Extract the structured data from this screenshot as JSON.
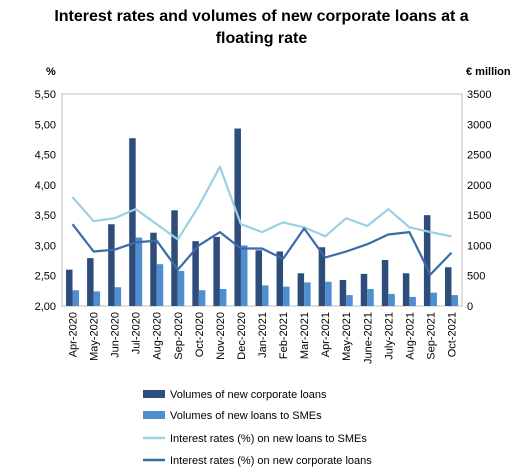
{
  "chart_data": {
    "type": "bar",
    "title_line1": "Interest rates and volumes of new corporate loans at a",
    "title_line2": "floating rate",
    "ylabel_left": "%",
    "ylabel_right": "€ million",
    "ylim_left": [
      2.0,
      5.5
    ],
    "ylim_right": [
      0,
      3500
    ],
    "yticks_left": [
      "5,50",
      "5,00",
      "4,50",
      "4,00",
      "3,50",
      "3,00",
      "2,50",
      "2,00"
    ],
    "yticks_right": [
      "3500",
      "3000",
      "2500",
      "2000",
      "1500",
      "1000",
      "500",
      "0"
    ],
    "categories": [
      "Apr-2020",
      "May-2020",
      "Jun-2020",
      "Jul-2020",
      "Aug-2020",
      "Sep-2020",
      "Oct-2020",
      "Nov-2020",
      "Dec-2020",
      "Jan-2021",
      "Feb-2021",
      "Mar-2021",
      "Apr-2021",
      "May-2021",
      "June-2021",
      "July-2021",
      "Aug-2021",
      "Sep-2021",
      "Oct-2021"
    ],
    "series": [
      {
        "name": "Volumes of new corporate loans",
        "kind": "bar",
        "axis": "right",
        "color": "#2e4d7b",
        "values": [
          600,
          790,
          1350,
          2770,
          1210,
          1580,
          1070,
          1140,
          2930,
          920,
          900,
          540,
          970,
          430,
          530,
          760,
          540,
          1500,
          640
        ]
      },
      {
        "name": "Volumes of new loans to SMEs",
        "kind": "bar",
        "axis": "right",
        "color": "#4f8ed0",
        "values": [
          260,
          240,
          310,
          1130,
          690,
          580,
          260,
          280,
          1000,
          340,
          320,
          390,
          400,
          180,
          280,
          200,
          150,
          220,
          180
        ]
      },
      {
        "name": "Interest rates (%) on new loans to SMEs",
        "kind": "line",
        "axis": "left",
        "color": "#9bd0e4",
        "values": [
          3.8,
          3.4,
          3.45,
          3.6,
          3.35,
          3.1,
          3.65,
          4.3,
          3.35,
          3.22,
          3.38,
          3.3,
          3.15,
          3.45,
          3.32,
          3.6,
          3.3,
          3.22,
          3.15
        ]
      },
      {
        "name": "Interest rates (%) on new corporate loans",
        "kind": "line",
        "axis": "left",
        "color": "#3b6aa8",
        "values": [
          3.35,
          2.9,
          2.93,
          3.05,
          3.08,
          2.6,
          3.0,
          3.22,
          2.95,
          2.95,
          2.78,
          3.28,
          2.8,
          2.9,
          3.02,
          3.18,
          3.22,
          2.52,
          2.88
        ]
      }
    ]
  }
}
